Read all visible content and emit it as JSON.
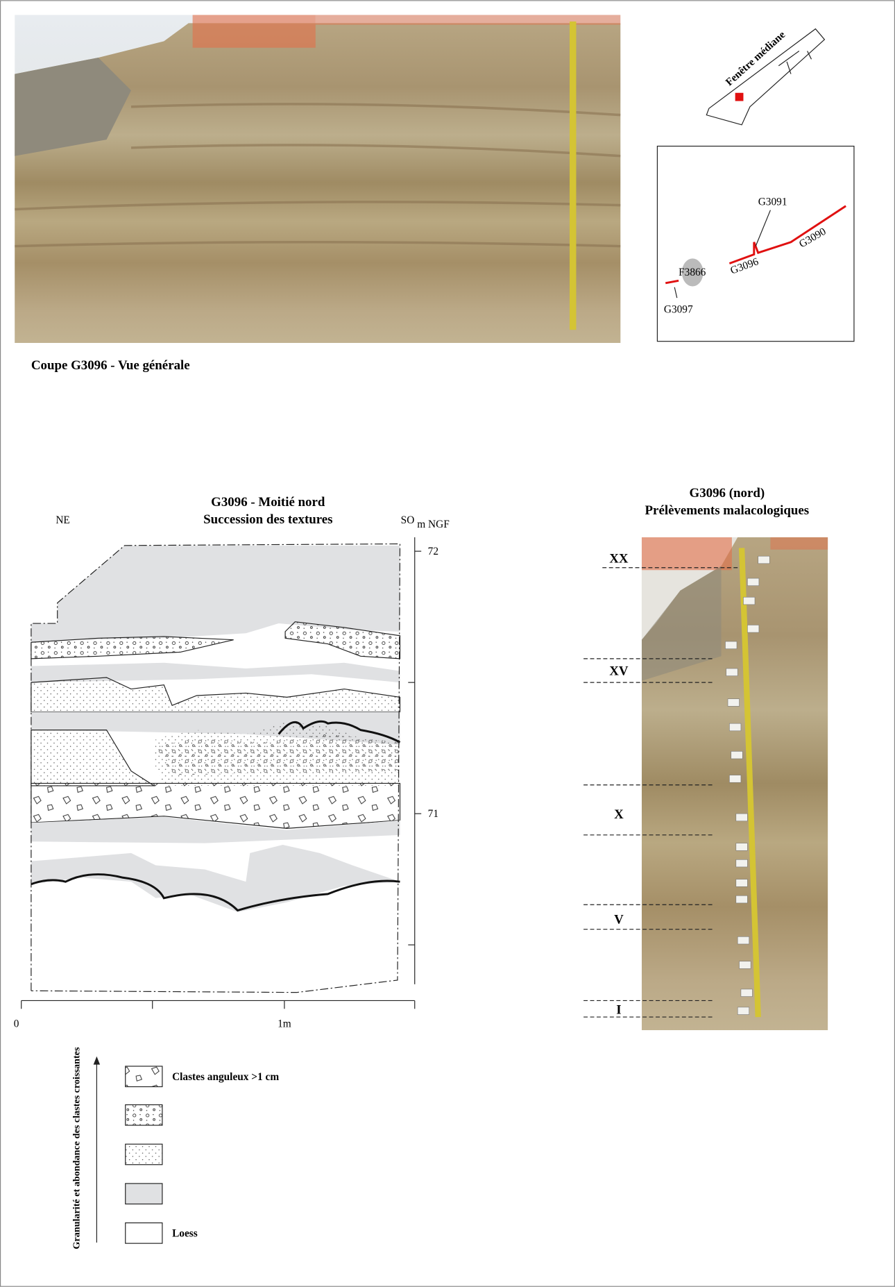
{
  "photo": {
    "caption": "Coupe G3096 - Vue générale"
  },
  "key_map": {
    "window_label": "Fenêtre médiane",
    "labels": [
      "G3091",
      "G3090",
      "G3096",
      "F3866",
      "G3097"
    ]
  },
  "section": {
    "title": [
      "G3096 - Moitié nord",
      "Succession des textures"
    ],
    "left": "NE",
    "right": "SO",
    "unit": "m NGF",
    "elevations": [
      "72",
      "71"
    ],
    "scale": [
      "0",
      "1m"
    ]
  },
  "legend": {
    "axis": "Granularité et abondance des clastes croissantes",
    "items": [
      "Clastes anguleux >1 cm",
      "Loess"
    ]
  },
  "sampling": {
    "title": [
      "G3096 (nord)",
      "Prélèvements malacologiques"
    ],
    "samples": [
      "XX",
      "XV",
      "X",
      "V",
      "I"
    ]
  }
}
